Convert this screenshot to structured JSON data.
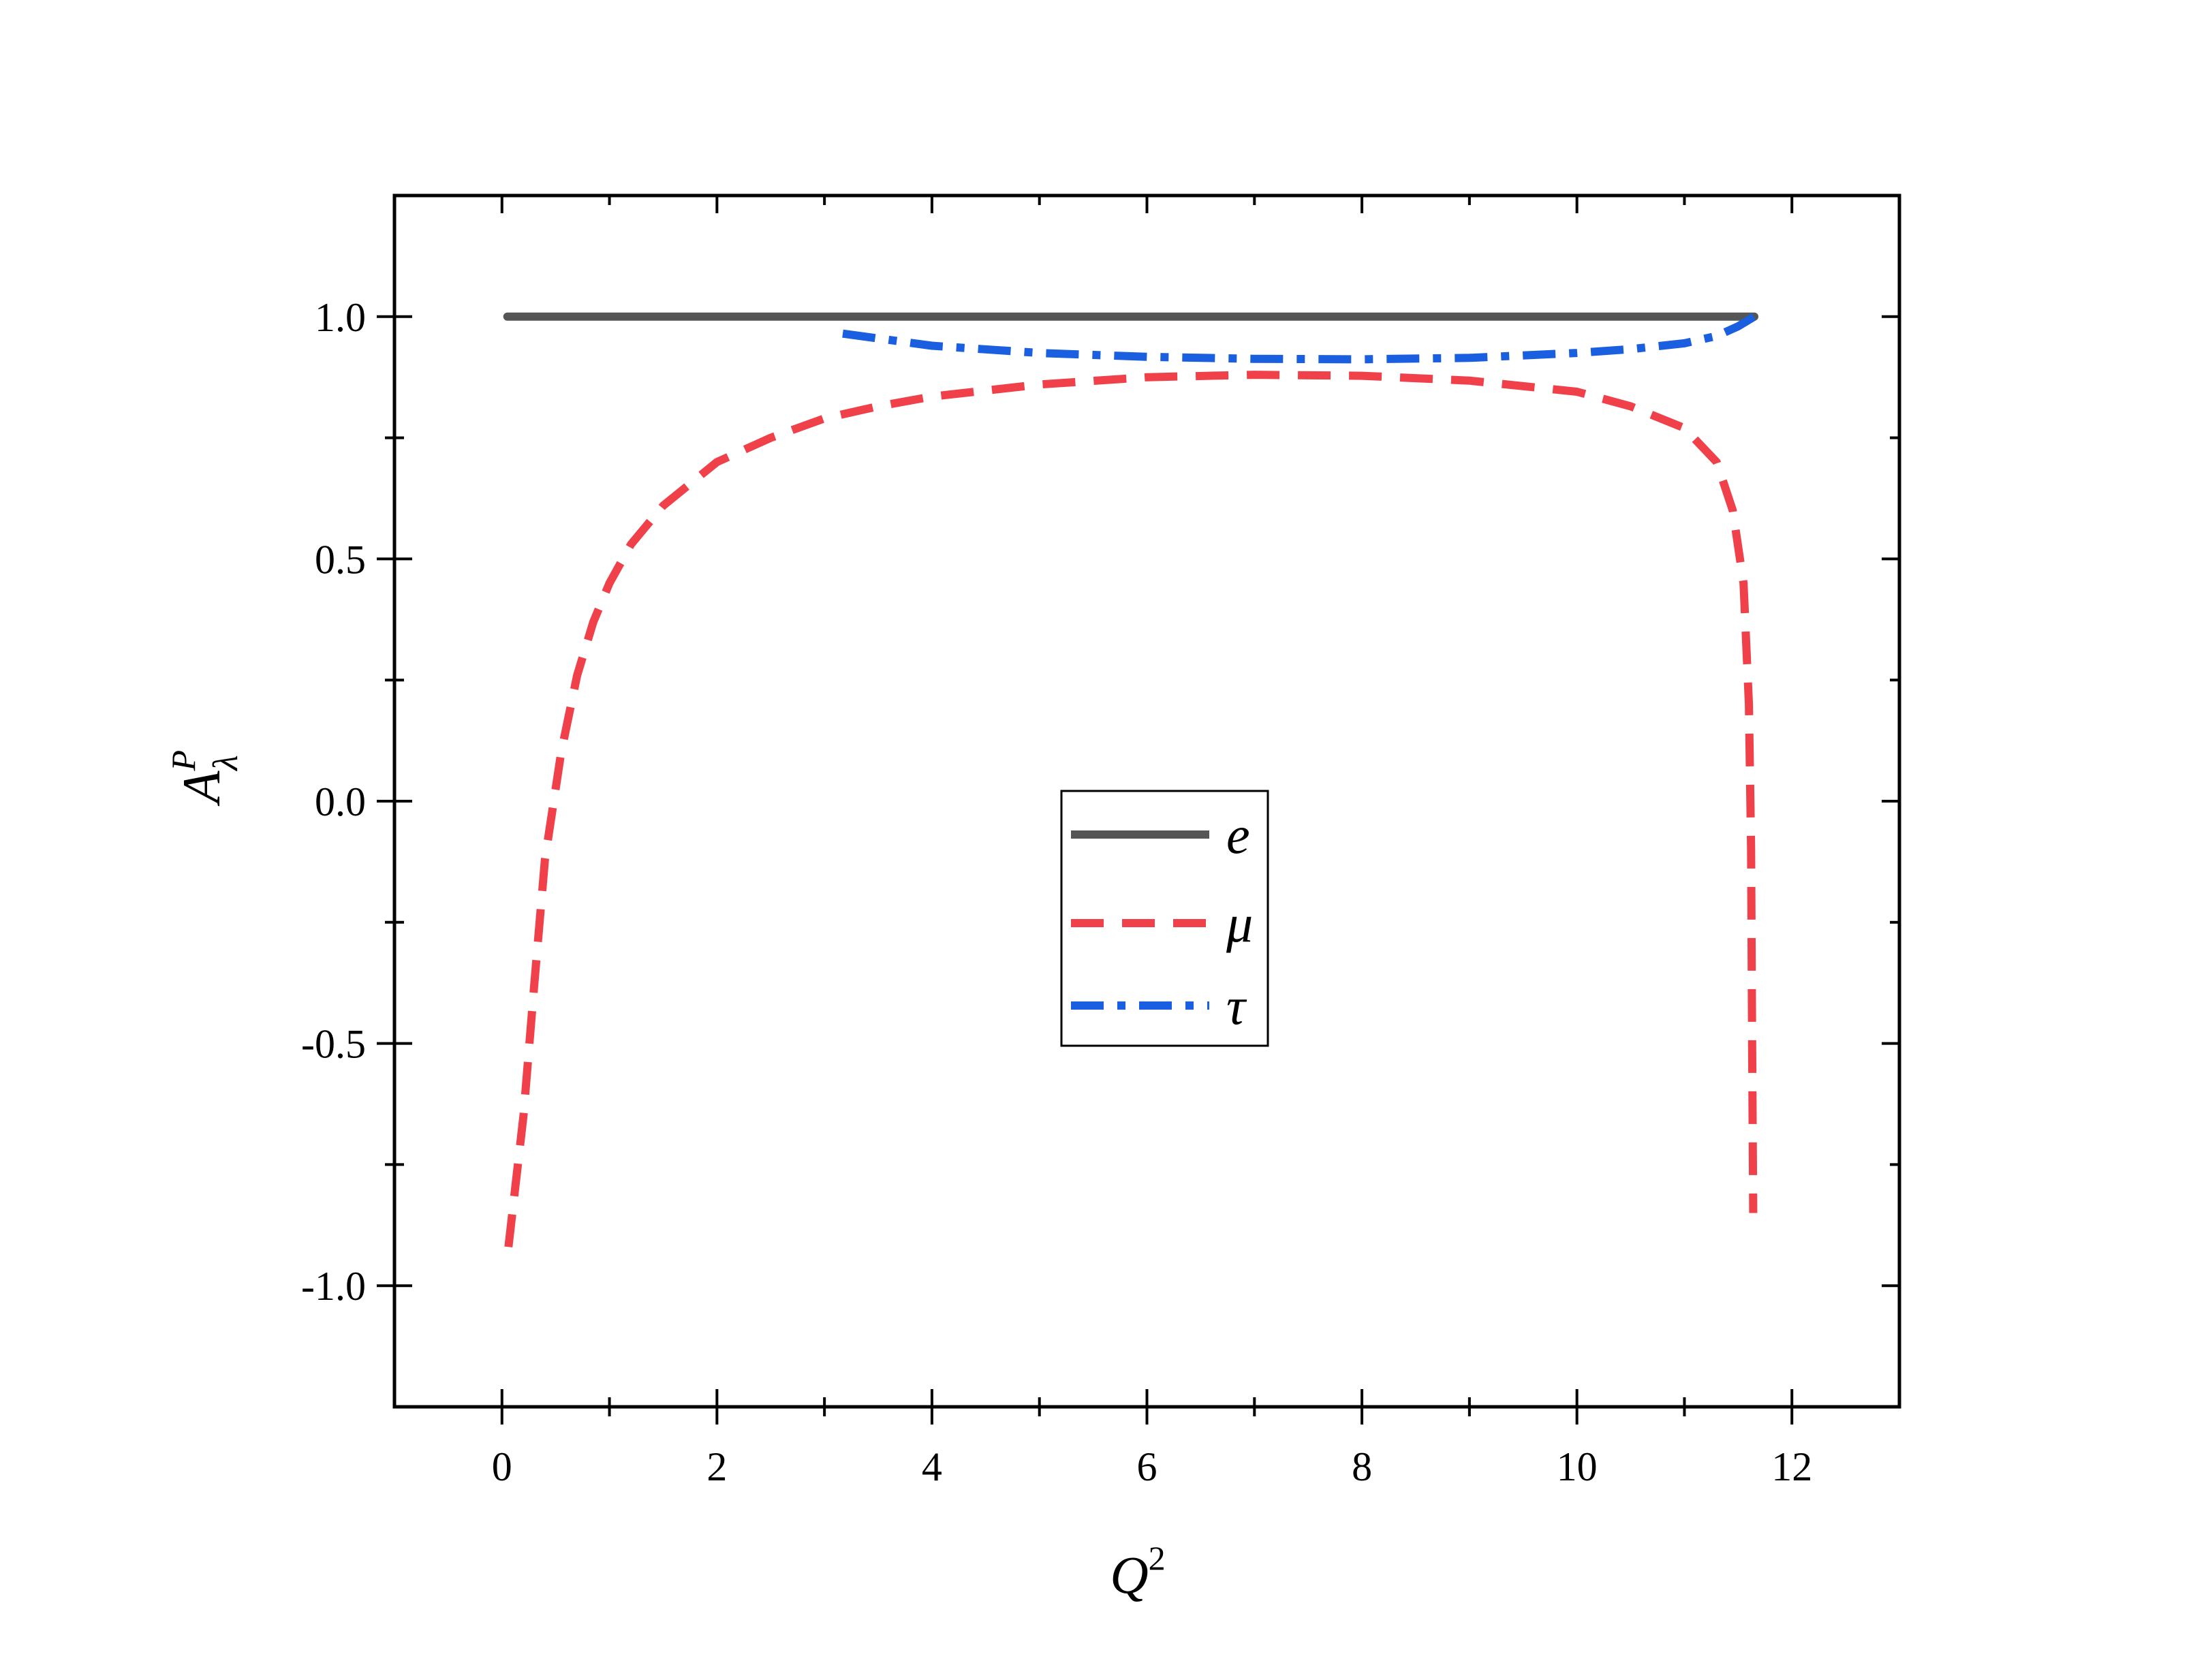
{
  "chart_data": {
    "type": "line",
    "xlabel": "Q",
    "xlabel_sup": "2",
    "ylabel": "A",
    "ylabel_sup": "P",
    "ylabel_sub": "λ",
    "xlim": [
      -1,
      13
    ],
    "ylim": [
      -1.25,
      1.25
    ],
    "xticks": [
      0,
      2,
      4,
      6,
      8,
      10,
      12
    ],
    "xtick_labels": [
      "0",
      "2",
      "4",
      "6",
      "8",
      "10",
      "12"
    ],
    "xminor": [
      1,
      3,
      5,
      7,
      9,
      11
    ],
    "yticks": [
      -1.0,
      -0.5,
      0.0,
      0.5,
      1.0
    ],
    "ytick_labels": [
      "-1.0",
      "-0.5",
      "0.0",
      "0.5",
      "1.0"
    ],
    "yminor": [
      -0.75,
      -0.25,
      0.25,
      0.75
    ],
    "grid": false,
    "legend_position": "center",
    "series": [
      {
        "name": "e",
        "style": "solid",
        "color": "#555555",
        "x": [
          0.05,
          11.65
        ],
        "y": [
          1.0,
          1.0
        ]
      },
      {
        "name": "μ",
        "style": "dashed",
        "color": "#f0414a",
        "x": [
          0.06,
          0.2,
          0.3,
          0.4,
          0.55,
          0.7,
          0.85,
          1.0,
          1.2,
          1.5,
          2.0,
          2.5,
          3.0,
          3.5,
          4.0,
          5.0,
          6.0,
          7.0,
          8.0,
          9.0,
          10.0,
          10.5,
          11.0,
          11.3,
          11.45,
          11.55,
          11.6,
          11.62,
          11.63,
          11.64
        ],
        "y": [
          -0.92,
          -0.65,
          -0.38,
          -0.12,
          0.1,
          0.26,
          0.37,
          0.45,
          0.53,
          0.61,
          0.7,
          0.75,
          0.79,
          0.815,
          0.835,
          0.86,
          0.875,
          0.88,
          0.878,
          0.868,
          0.845,
          0.815,
          0.77,
          0.7,
          0.6,
          0.45,
          0.2,
          -0.1,
          -0.5,
          -0.85
        ]
      },
      {
        "name": "τ",
        "style": "dashdot",
        "color": "#1a5fe0",
        "x": [
          3.17,
          4.0,
          5.0,
          6.0,
          7.0,
          8.0,
          9.0,
          10.0,
          10.5,
          11.0,
          11.3,
          11.5,
          11.65
        ],
        "y": [
          0.965,
          0.94,
          0.925,
          0.917,
          0.913,
          0.912,
          0.915,
          0.925,
          0.933,
          0.945,
          0.96,
          0.98,
          1.0
        ]
      }
    ]
  }
}
